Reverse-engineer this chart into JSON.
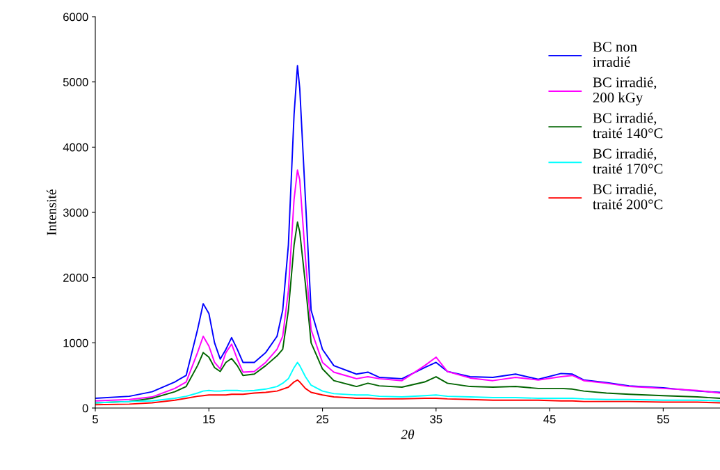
{
  "chart_data": {
    "type": "line",
    "xlabel": "2θ",
    "ylabel": "Intensité",
    "x": [
      5,
      8,
      10,
      12,
      13,
      14,
      14.5,
      15,
      15.5,
      16,
      16.5,
      17,
      17.5,
      18,
      19,
      20,
      21,
      21.5,
      22,
      22.5,
      22.8,
      23,
      23.5,
      24,
      25,
      26,
      28,
      29,
      30,
      32,
      34,
      35,
      36,
      38,
      40,
      42,
      44,
      46,
      47,
      48,
      50,
      52,
      55,
      58,
      60
    ],
    "series": [
      {
        "name": "BC non\nirradié",
        "color": "#0000ff",
        "values": [
          150,
          180,
          250,
          400,
          500,
          1200,
          1600,
          1450,
          1000,
          750,
          900,
          1080,
          900,
          700,
          700,
          850,
          1100,
          1500,
          2500,
          4500,
          5250,
          4900,
          3200,
          1500,
          900,
          650,
          520,
          550,
          470,
          450,
          620,
          700,
          560,
          480,
          470,
          520,
          440,
          530,
          520,
          430,
          390,
          340,
          310,
          260,
          240
        ]
      },
      {
        "name": "BC irradié,\n200 kGy",
        "color": "#ff00ff",
        "values": [
          110,
          130,
          170,
          300,
          400,
          850,
          1100,
          950,
          700,
          600,
          850,
          980,
          750,
          550,
          560,
          700,
          900,
          1100,
          1800,
          3200,
          3650,
          3500,
          2300,
          1200,
          700,
          550,
          450,
          480,
          450,
          420,
          650,
          780,
          560,
          460,
          420,
          470,
          430,
          480,
          500,
          420,
          380,
          330,
          300,
          270,
          230
        ]
      },
      {
        "name": "BC irradié,\ntraité 140°C",
        "color": "#006400",
        "values": [
          80,
          100,
          150,
          250,
          330,
          650,
          850,
          780,
          620,
          560,
          700,
          760,
          650,
          500,
          520,
          650,
          800,
          900,
          1500,
          2500,
          2850,
          2700,
          1900,
          1000,
          600,
          420,
          330,
          380,
          340,
          320,
          400,
          480,
          380,
          330,
          320,
          330,
          300,
          300,
          290,
          260,
          230,
          210,
          190,
          170,
          150
        ]
      },
      {
        "name": "BC irradié,\ntraité 170°C",
        "color": "#00ffff",
        "values": [
          80,
          100,
          110,
          150,
          180,
          230,
          260,
          270,
          260,
          260,
          270,
          270,
          270,
          260,
          270,
          290,
          330,
          380,
          450,
          620,
          700,
          650,
          480,
          350,
          260,
          220,
          200,
          200,
          180,
          170,
          190,
          200,
          180,
          170,
          160,
          160,
          150,
          150,
          150,
          140,
          130,
          130,
          120,
          120,
          110
        ]
      },
      {
        "name": "BC irradié,\ntraité 200°C",
        "color": "#ff0000",
        "values": [
          50,
          60,
          80,
          120,
          150,
          180,
          190,
          200,
          200,
          200,
          200,
          210,
          210,
          210,
          230,
          240,
          260,
          290,
          320,
          400,
          430,
          400,
          300,
          240,
          200,
          170,
          150,
          150,
          140,
          140,
          150,
          150,
          140,
          130,
          120,
          120,
          120,
          110,
          110,
          100,
          100,
          100,
          90,
          90,
          80
        ]
      }
    ],
    "xlim": [
      5,
      60
    ],
    "xticks": [
      5,
      15,
      25,
      35,
      45,
      55
    ],
    "ylim": [
      0,
      6000
    ],
    "yticks": [
      0,
      1000,
      2000,
      3000,
      4000,
      5000,
      6000
    ],
    "legend": "top right"
  }
}
